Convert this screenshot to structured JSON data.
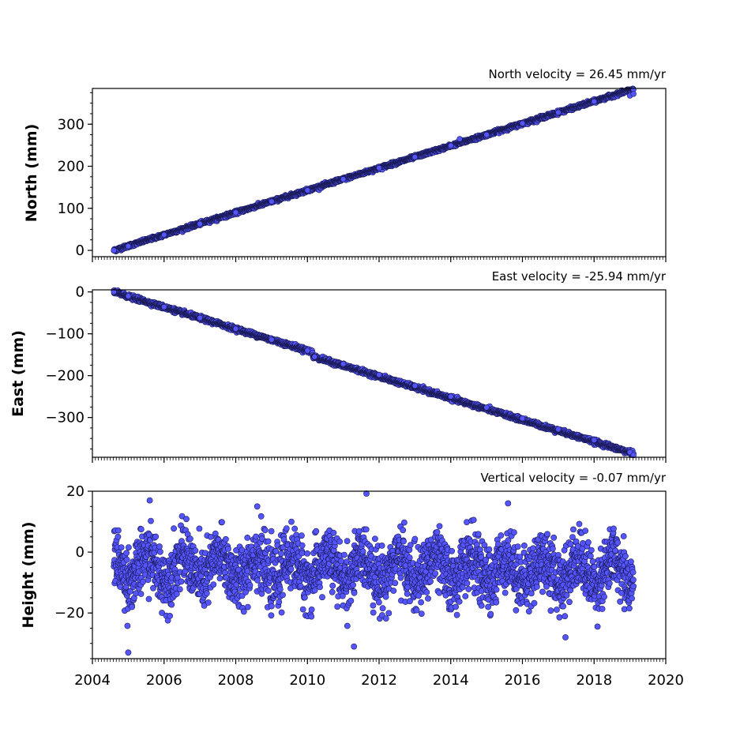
{
  "chart_data": [
    {
      "type": "scatter",
      "annotation": "North velocity = 26.45 mm/yr",
      "ylabel": "North (mm)",
      "xlim": [
        2004,
        2020
      ],
      "ylim": [
        -15,
        385
      ],
      "yticks": [
        0,
        100,
        200,
        300
      ],
      "ytick_labels": [
        "0",
        "100",
        "200",
        "300"
      ],
      "velocity_mm_per_yr": 26.45,
      "start_value": 0,
      "noise_mm": 2,
      "x_start": 2004.6,
      "x_end": 2019.1,
      "marker_color": "#5555ff",
      "series": [
        {
          "x": [
            2004.6,
            2005.0,
            2006.0,
            2007.0,
            2008.0,
            2009.0,
            2010.0,
            2011.0,
            2012.0,
            2013.0,
            2014.0,
            2014.25,
            2015.0,
            2016.0,
            2017.0,
            2018.0,
            2019.0,
            2019.1
          ],
          "y": [
            0,
            10,
            37,
            63,
            90,
            116,
            143,
            169,
            196,
            222,
            249,
            265,
            275,
            302,
            328,
            354,
            368,
            372
          ]
        }
      ]
    },
    {
      "type": "scatter",
      "annotation": "East velocity = -25.94 mm/yr",
      "ylabel": "East (mm)",
      "xlim": [
        2004,
        2020
      ],
      "ylim": [
        -395,
        5
      ],
      "yticks": [
        0,
        -100,
        -200,
        -300
      ],
      "ytick_labels": [
        "0",
        "−100",
        "−200",
        "−300"
      ],
      "velocity_mm_per_yr": -25.94,
      "start_value": 0,
      "noise_mm": 2.5,
      "x_start": 2004.6,
      "x_end": 2019.1,
      "marker_color": "#5555ff",
      "series": [
        {
          "x": [
            2004.6,
            2005.0,
            2006.0,
            2007.0,
            2008.0,
            2009.0,
            2010.0,
            2010.2,
            2011.0,
            2012.0,
            2013.0,
            2014.0,
            2015.0,
            2016.0,
            2017.0,
            2018.0,
            2019.0,
            2019.1
          ],
          "y": [
            0,
            -10,
            -36,
            -62,
            -88,
            -114,
            -140,
            -155,
            -172,
            -198,
            -224,
            -250,
            -276,
            -302,
            -328,
            -354,
            -383,
            -390
          ]
        }
      ]
    },
    {
      "type": "scatter",
      "annotation": "Vertical velocity = -0.07 mm/yr",
      "ylabel": "Height (mm)",
      "xlim": [
        2004,
        2020
      ],
      "ylim": [
        -35,
        20
      ],
      "yticks": [
        -20,
        0,
        20
      ],
      "ytick_labels": [
        "−20",
        "0",
        "20"
      ],
      "velocity_mm_per_yr": -0.07,
      "start_value": -5,
      "noise_mm": 5,
      "seasonal_amplitude_mm": 4,
      "x_start": 2004.6,
      "x_end": 2019.1,
      "marker_color": "#5555ff",
      "series": [
        {
          "x": [
            2005.0,
            2005.6,
            2008.6,
            2015.6,
            2011.3,
            2017.2
          ],
          "y": [
            -33,
            17,
            15,
            16,
            -31,
            -28
          ]
        }
      ]
    }
  ],
  "xaxis": {
    "ticks": [
      2004,
      2006,
      2008,
      2010,
      2012,
      2014,
      2016,
      2018,
      2020
    ],
    "tick_labels": [
      "2004",
      "2006",
      "2008",
      "2010",
      "2012",
      "2014",
      "2016",
      "2018",
      "2020"
    ]
  }
}
